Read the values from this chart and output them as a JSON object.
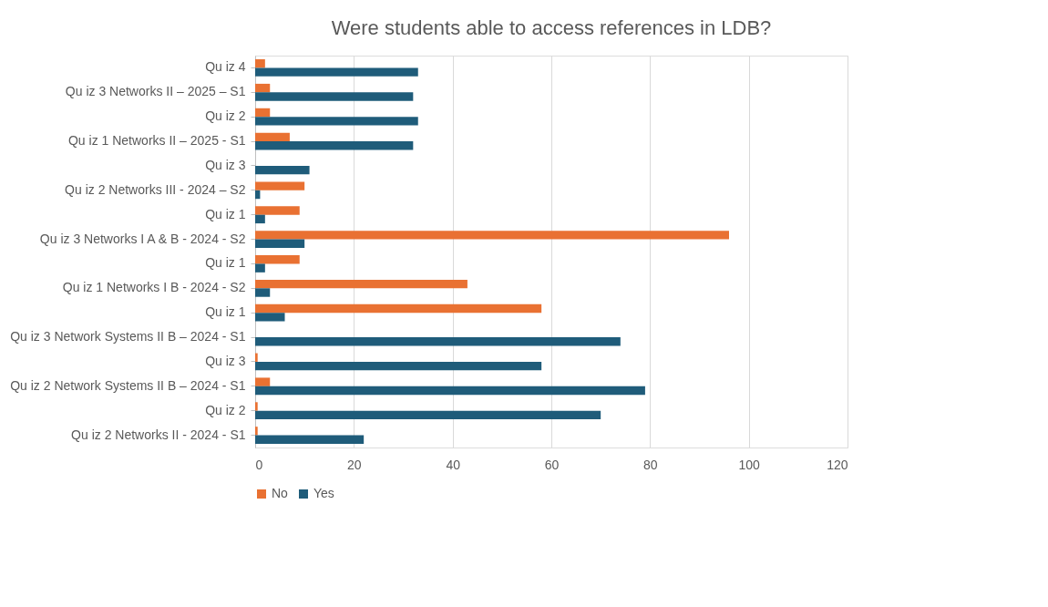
{
  "chart_data": {
    "type": "bar",
    "orientation": "horizontal",
    "title": "Were students able to access references in LDB?",
    "categories": [
      "Qu iz 4",
      "Qu iz 3 Networks II – 2025 – S1",
      "Qu iz 2",
      "Qu iz 1 Networks II – 2025 - S1",
      "Qu iz 3",
      "Qu iz 2 Networks III - 2024 – S2",
      "Qu iz 1",
      "Qu iz 3 Networks I A & B - 2024 - S2",
      "Qu iz 1",
      "Qu iz 1 Networks I B - 2024 - S2",
      "Qu iz 1",
      "Qu iz 3 Network Systems II B – 2024 - S1",
      "Qu iz 3",
      "Qu iz 2 Network Systems II B – 2024 - S1",
      "Qu iz 2",
      "Qu iz 2 Networks II - 2024 - S1"
    ],
    "series": [
      {
        "name": "No",
        "color": "#e97132",
        "values": [
          2,
          3,
          3,
          7,
          0,
          10,
          9,
          96,
          9,
          43,
          58,
          0,
          0.5,
          3,
          0.5,
          0.5
        ]
      },
      {
        "name": "Yes",
        "color": "#1f5c7a",
        "values": [
          33,
          32,
          33,
          32,
          11,
          1,
          2,
          10,
          2,
          3,
          6,
          74,
          58,
          79,
          70,
          22
        ]
      }
    ],
    "xlim": [
      0,
      120
    ],
    "xticks": [
      0,
      20,
      40,
      60,
      80,
      100,
      120
    ],
    "grid": "x",
    "legend": "bottom"
  }
}
